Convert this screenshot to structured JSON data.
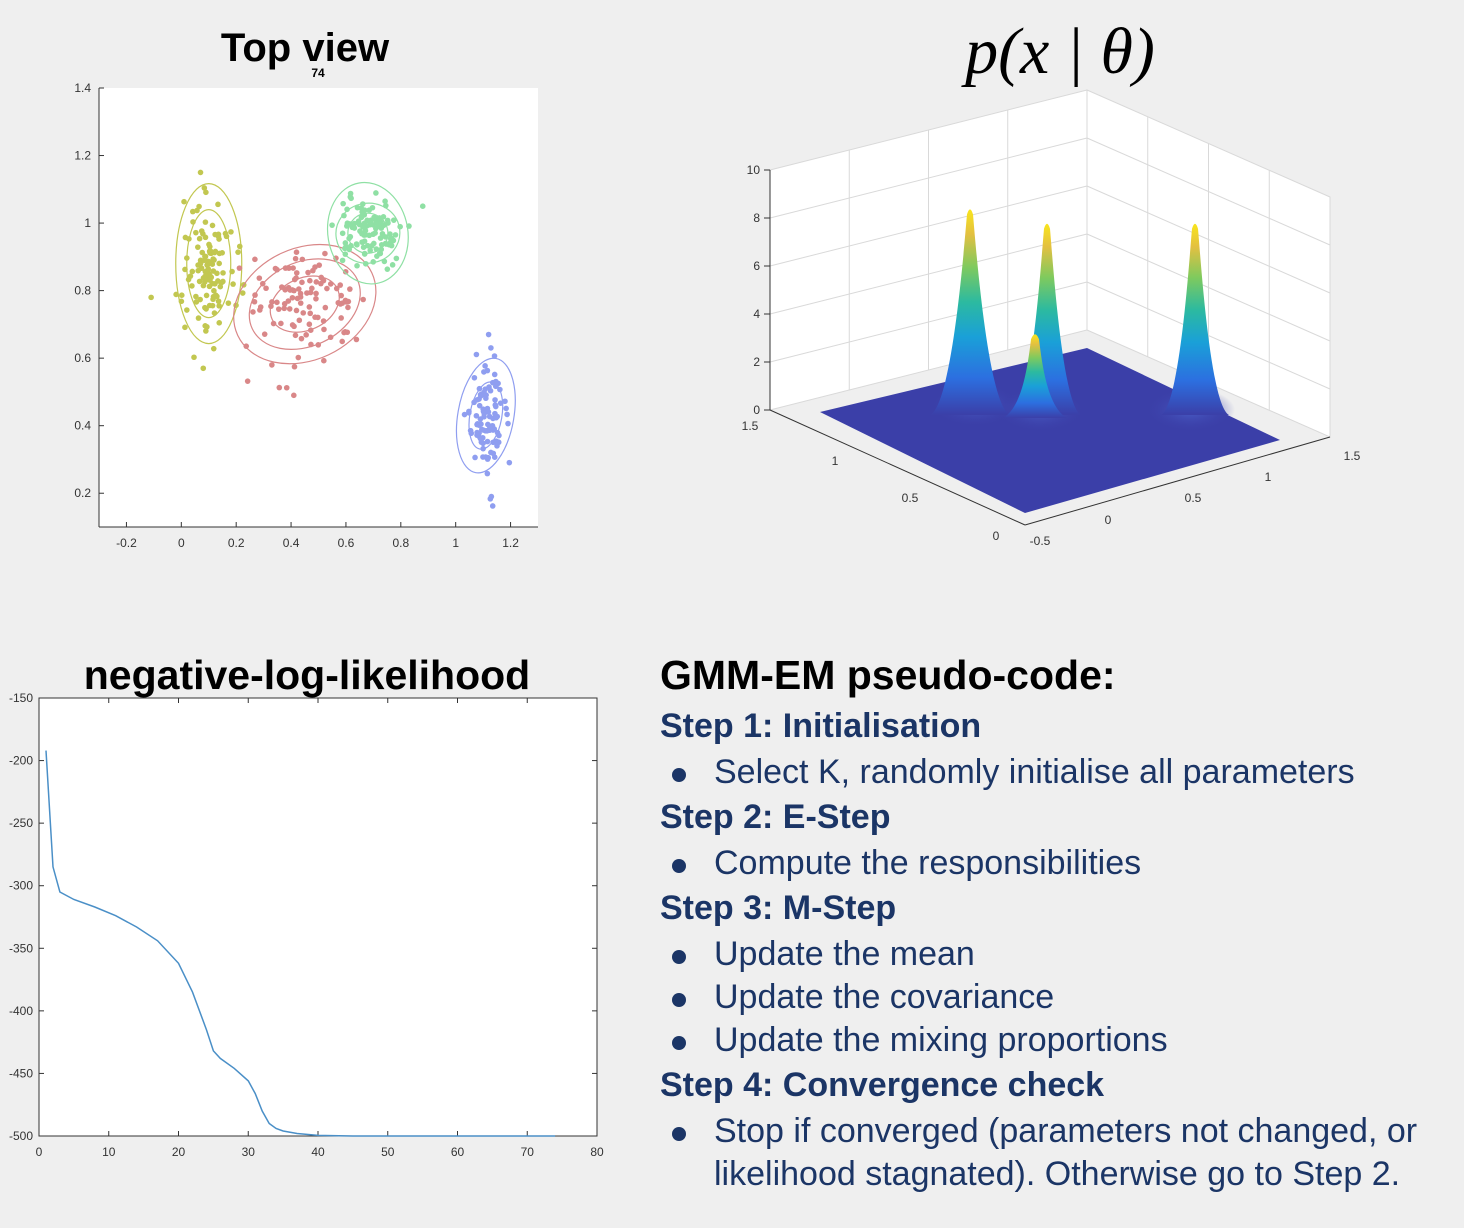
{
  "chart_data": [
    {
      "type": "scatter",
      "title": "Top view",
      "subtitle": "74",
      "xlim": [
        -0.3,
        1.3
      ],
      "ylim": [
        0.1,
        1.4
      ],
      "x_ticks": [
        "-0.2",
        "0",
        "0.2",
        "0.4",
        "0.6",
        "0.8",
        "1",
        "1.2"
      ],
      "y_ticks": [
        "0.2",
        "0.4",
        "0.6",
        "0.8",
        "1",
        "1.2",
        "1.4"
      ],
      "grid": false,
      "clusters": [
        {
          "color": "#c2c750",
          "mean": [
            0.1,
            0.88
          ],
          "spread": [
            0.045,
            0.1
          ],
          "count": 120
        },
        {
          "color": "#d98788",
          "mean": [
            0.45,
            0.76
          ],
          "spread": [
            0.11,
            0.08
          ],
          "count": 110
        },
        {
          "color": "#8fe0a4",
          "mean": [
            0.68,
            0.97
          ],
          "spread": [
            0.055,
            0.05
          ],
          "count": 110
        },
        {
          "color": "#8f9ef0",
          "mean": [
            1.11,
            0.43
          ],
          "spread": [
            0.035,
            0.08
          ],
          "count": 100
        }
      ],
      "outliers": [
        [
          0.07,
          1.15
        ],
        [
          -0.11,
          0.78
        ],
        [
          0.08,
          0.57
        ],
        [
          0.41,
          0.49
        ],
        [
          0.88,
          1.05
        ],
        [
          0.33,
          0.58
        ],
        [
          1.13,
          0.19
        ],
        [
          1.12,
          0.67
        ]
      ]
    },
    {
      "type": "surface",
      "title": "p(x | θ)",
      "z_ticks": [
        "0",
        "2",
        "4",
        "6",
        "8",
        "10"
      ],
      "left_axis_ticks": [
        "1.5",
        "1",
        "0.5",
        "0"
      ],
      "right_axis_ticks": [
        "-0.5",
        "0",
        "0.5",
        "1",
        "1.5"
      ],
      "peaks": [
        {
          "height": 8.4,
          "label": "left"
        },
        {
          "height": 7.8,
          "label": "center"
        },
        {
          "height": 3.2,
          "label": "center-low"
        },
        {
          "height": 7.8,
          "label": "right"
        }
      ],
      "colormap": "parula"
    },
    {
      "type": "line",
      "title": "negative-log-likelihood",
      "xlim": [
        0,
        80
      ],
      "ylim": [
        -500,
        -150
      ],
      "x_ticks": [
        "0",
        "10",
        "20",
        "30",
        "40",
        "50",
        "60",
        "70",
        "80"
      ],
      "y_ticks": [
        "-150",
        "-200",
        "-250",
        "-300",
        "-350",
        "-400",
        "-450",
        "-500"
      ],
      "series": [
        {
          "color": "#4a8fc7",
          "x": [
            1,
            2,
            3,
            5,
            8,
            11,
            14,
            17,
            20,
            22,
            24,
            25,
            26,
            28,
            30,
            31,
            32,
            33,
            34,
            35,
            37,
            40,
            45,
            50,
            60,
            70,
            74
          ],
          "y": [
            -192,
            -285,
            -305,
            -311,
            -317,
            -324,
            -333,
            -344,
            -362,
            -385,
            -415,
            -432,
            -438,
            -446,
            -456,
            -466,
            -480,
            -490,
            -494,
            -496,
            -498,
            -499.5,
            -500,
            -500,
            -500,
            -500,
            -500
          ]
        }
      ]
    }
  ],
  "pseudocode": {
    "title": "GMM-EM pseudo-code:",
    "steps": [
      {
        "heading": "Step 1: Initialisation",
        "items": [
          "Select K, randomly initialise all parameters"
        ]
      },
      {
        "heading": "Step 2: E-Step",
        "items": [
          "Compute the responsibilities"
        ]
      },
      {
        "heading": "Step 3: M-Step",
        "items": [
          "Update the mean",
          "Update the covariance",
          "Update the mixing proportions"
        ]
      },
      {
        "heading": "Step 4: Convergence check",
        "items": [
          "Stop if converged (parameters not changed, or likelihood stagnated). Otherwise go to Step 2."
        ]
      }
    ]
  },
  "colors": {
    "text_blue": "#1b3566",
    "axis": "#333333",
    "grid": "#d9d9d9"
  }
}
